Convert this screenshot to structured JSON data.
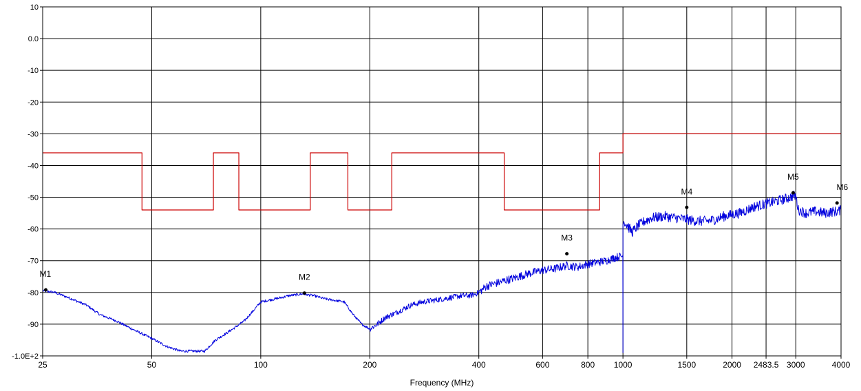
{
  "chart_data": {
    "type": "line",
    "title": "",
    "xlabel": "Frequency (MHz)",
    "ylabel": "",
    "x_scale": "log",
    "xlim": [
      25,
      4000
    ],
    "ylim": [
      -100,
      10
    ],
    "grid": true,
    "x_ticks": [
      {
        "value": 25,
        "label": "25"
      },
      {
        "value": 50,
        "label": "50"
      },
      {
        "value": 100,
        "label": "100"
      },
      {
        "value": 200,
        "label": "200"
      },
      {
        "value": 400,
        "label": "400"
      },
      {
        "value": 600,
        "label": "600"
      },
      {
        "value": 800,
        "label": "800"
      },
      {
        "value": 1000,
        "label": "1000"
      },
      {
        "value": 1500,
        "label": "1500"
      },
      {
        "value": 2000,
        "label": "2000"
      },
      {
        "value": 2483.5,
        "label": "2483.5"
      },
      {
        "value": 3000,
        "label": "3000"
      },
      {
        "value": 4000,
        "label": "4000"
      }
    ],
    "y_ticks": [
      {
        "value": 10,
        "label": "10"
      },
      {
        "value": 0,
        "label": "0.0"
      },
      {
        "value": -10,
        "label": "-10"
      },
      {
        "value": -20,
        "label": "-20"
      },
      {
        "value": -30,
        "label": "-30"
      },
      {
        "value": -40,
        "label": "-40"
      },
      {
        "value": -50,
        "label": "-50"
      },
      {
        "value": -60,
        "label": "-60"
      },
      {
        "value": -70,
        "label": "-70"
      },
      {
        "value": -80,
        "label": "-80"
      },
      {
        "value": -90,
        "label": "-90"
      },
      {
        "value": -100,
        "label": "-1.0E+2"
      }
    ],
    "series": [
      {
        "color": "#cc0000",
        "step": true,
        "x": [
          25,
          47,
          47,
          74,
          74,
          87,
          87,
          137,
          137,
          174,
          174,
          230,
          230,
          470,
          470,
          862,
          862,
          1000,
          1000,
          4000
        ],
        "y": [
          -36,
          -36,
          -54,
          -54,
          -36,
          -36,
          -54,
          -54,
          -36,
          -36,
          -54,
          -54,
          -36,
          -36,
          -54,
          -54,
          -36,
          -36,
          -30,
          -30
        ]
      },
      {
        "color": "#0000dd",
        "x": [
          25,
          27,
          30,
          33,
          36,
          40,
          45,
          50,
          55,
          60,
          65,
          70,
          75,
          80,
          85,
          90,
          95,
          100,
          110,
          120,
          130,
          140,
          150,
          160,
          170,
          180,
          190,
          200,
          210,
          220,
          240,
          260,
          280,
          300,
          320,
          340,
          360,
          380,
          400,
          420,
          450,
          480,
          500,
          550,
          600,
          650,
          700,
          750,
          800,
          850,
          900,
          950,
          999,
          1000,
          1000,
          1005,
          1030,
          1060,
          1100,
          1150,
          1200,
          1300,
          1400,
          1500,
          1600,
          1700,
          1800,
          1900,
          2000,
          2100,
          2200,
          2300,
          2400,
          2483.5,
          2600,
          2800,
          2900,
          2950,
          3000,
          3050,
          3200,
          3400,
          3600,
          3800,
          3900,
          4000
        ],
        "y": [
          -79.5,
          -80,
          -82,
          -84,
          -87,
          -89,
          -92,
          -94.5,
          -97,
          -98.5,
          -98.5,
          -98.5,
          -95,
          -93,
          -91,
          -89,
          -86,
          -83,
          -82,
          -81,
          -80.5,
          -81,
          -82,
          -82.5,
          -83,
          -87,
          -90,
          -91.5,
          -90,
          -88,
          -86,
          -84,
          -83,
          -82.5,
          -82,
          -81.5,
          -81,
          -81,
          -80,
          -78,
          -77,
          -76,
          -75.5,
          -74,
          -73,
          -72.5,
          -71.5,
          -72,
          -71,
          -70.5,
          -70,
          -69,
          -68.5,
          -99,
          -57,
          -57.5,
          -59,
          -61,
          -59,
          -57.5,
          -56.5,
          -56,
          -56.5,
          -57,
          -57.5,
          -57.5,
          -57,
          -56,
          -55.5,
          -55,
          -54,
          -53,
          -52.5,
          -52,
          -51.5,
          -50.5,
          -50,
          -49.5,
          -49.5,
          -54,
          -55,
          -54.5,
          -55,
          -54.5,
          -54.5,
          -54
        ]
      }
    ],
    "markers": [
      {
        "label": "M1",
        "x": 25.5,
        "y": -79.2
      },
      {
        "label": "M2",
        "x": 132,
        "y": -80.2
      },
      {
        "label": "M3",
        "x": 700,
        "y": -67.8
      },
      {
        "label": "M4",
        "x": 1500,
        "y": -53.2
      },
      {
        "label": "M5",
        "x": 2950,
        "y": -48.6
      },
      {
        "label": "M6",
        "x": 3900,
        "y": -51.8
      }
    ]
  }
}
